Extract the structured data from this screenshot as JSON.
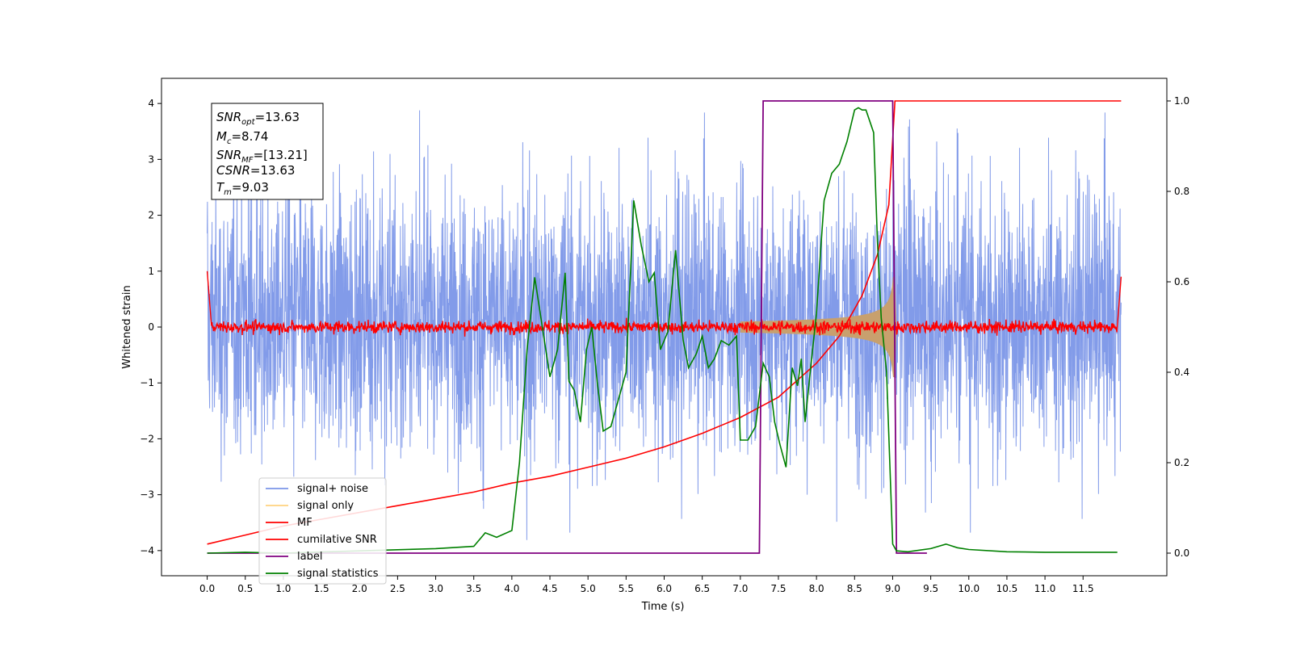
{
  "chart_data": {
    "type": "line",
    "xlabel": "Time (s)",
    "ylabel": "Whitened strain",
    "xlim": [
      -0.6,
      12.6
    ],
    "ylim": [
      -4.45,
      4.45
    ],
    "y2lim": [
      -0.05,
      1.05
    ],
    "x_ticks": [
      "0.0",
      "0.5",
      "1.0",
      "1.5",
      "2.0",
      "2.5",
      "3.0",
      "3.5",
      "4.0",
      "4.5",
      "5.0",
      "5.5",
      "6.0",
      "6.5",
      "7.0",
      "7.5",
      "8.0",
      "8.5",
      "9.0",
      "9.5",
      "10.0",
      "10.5",
      "11.0",
      "11.5"
    ],
    "x_tick_values": [
      0,
      0.5,
      1,
      1.5,
      2,
      2.5,
      3,
      3.5,
      4,
      4.5,
      5,
      5.5,
      6,
      6.5,
      7,
      7.5,
      8,
      8.5,
      9,
      9.5,
      10,
      10.5,
      11,
      11.5
    ],
    "y_ticks": [
      "−4",
      "−3",
      "−2",
      "−1",
      "0",
      "1",
      "2",
      "3",
      "4"
    ],
    "y_tick_values": [
      -4,
      -3,
      -2,
      -1,
      0,
      1,
      2,
      3,
      4
    ],
    "y2_ticks": [
      "0.0",
      "0.2",
      "0.4",
      "0.6",
      "0.8",
      "1.0"
    ],
    "y2_tick_values": [
      0,
      0.2,
      0.4,
      0.6,
      0.8,
      1.0
    ],
    "grid": false,
    "legend_position": "bottom-left",
    "annotations": {
      "snr_opt": {
        "name": "SNR",
        "sub": "opt",
        "value": "=13.63"
      },
      "mc": {
        "name": "M",
        "sub": "c",
        "value": "=8.74"
      },
      "snr_mf": {
        "name": "SNR",
        "sub": "MF",
        "value": "=[13.21]"
      },
      "csnr": {
        "name": "CSNR",
        "sub": "",
        "value": "=13.63"
      },
      "tm": {
        "name": "T",
        "sub": "m",
        "value": "=9.03"
      }
    },
    "series": [
      {
        "name": "signal+ noise",
        "color": "#7b96e8",
        "axis": "left",
        "t_start": 0,
        "t_end": 12,
        "envelope_sigma": 1.0,
        "peak": 3.95,
        "trough": -4.1
      },
      {
        "name": "signal only",
        "color": "#c8a06e",
        "axis": "left",
        "t_start": 7.0,
        "t_end": 9.03,
        "peak_amplitude": 0.9
      },
      {
        "name": "MF",
        "color": "#ff0000",
        "axis": "left",
        "t_start": 0,
        "t_end": 12,
        "noise_amplitude": 0.1,
        "edge_values": [
          1.0,
          0.9
        ]
      },
      {
        "name": "cumilative SNR",
        "color": "#ff0000",
        "axis": "right",
        "x": [
          0.0,
          0.5,
          1.0,
          1.5,
          2.0,
          2.5,
          3.0,
          3.5,
          4.0,
          4.5,
          5.0,
          5.5,
          6.0,
          6.5,
          7.0,
          7.5,
          8.0,
          8.3,
          8.6,
          8.8,
          8.95,
          9.03,
          12.0
        ],
        "y": [
          0.02,
          0.04,
          0.06,
          0.075,
          0.09,
          0.105,
          0.12,
          0.135,
          0.155,
          0.17,
          0.19,
          0.21,
          0.235,
          0.265,
          0.3,
          0.345,
          0.42,
          0.48,
          0.57,
          0.66,
          0.77,
          1.0,
          1.0
        ]
      },
      {
        "name": "label",
        "color": "#800080",
        "axis": "right",
        "x": [
          0,
          7.25,
          7.3,
          9.0,
          9.05,
          9.45
        ],
        "y": [
          0,
          0,
          1,
          1,
          0,
          0
        ]
      },
      {
        "name": "signal statistics",
        "color": "#008000",
        "axis": "right",
        "x": [
          0.0,
          0.5,
          1.0,
          2.0,
          3.0,
          3.5,
          3.65,
          3.8,
          4.0,
          4.1,
          4.2,
          4.3,
          4.4,
          4.5,
          4.6,
          4.7,
          4.75,
          4.82,
          4.9,
          4.98,
          5.05,
          5.12,
          5.2,
          5.3,
          5.4,
          5.5,
          5.6,
          5.7,
          5.8,
          5.87,
          5.95,
          6.05,
          6.15,
          6.25,
          6.32,
          6.42,
          6.5,
          6.58,
          6.66,
          6.75,
          6.85,
          6.95,
          7.0,
          7.1,
          7.2,
          7.3,
          7.38,
          7.45,
          7.52,
          7.6,
          7.68,
          7.75,
          7.8,
          7.85,
          7.93,
          8.0,
          8.05,
          8.1,
          8.2,
          8.3,
          8.4,
          8.5,
          8.55,
          8.6,
          8.65,
          8.75,
          8.8,
          8.85,
          8.92,
          9.0,
          9.05,
          9.2,
          9.5,
          9.7,
          9.85,
          10.0,
          10.5,
          11.0,
          11.5,
          11.95
        ],
        "y": [
          0.0,
          0.002,
          0.0,
          0.005,
          0.01,
          0.015,
          0.045,
          0.035,
          0.05,
          0.2,
          0.45,
          0.61,
          0.5,
          0.39,
          0.45,
          0.62,
          0.38,
          0.36,
          0.29,
          0.45,
          0.5,
          0.38,
          0.27,
          0.28,
          0.34,
          0.4,
          0.78,
          0.68,
          0.6,
          0.62,
          0.45,
          0.49,
          0.67,
          0.47,
          0.41,
          0.44,
          0.48,
          0.41,
          0.43,
          0.47,
          0.46,
          0.48,
          0.25,
          0.25,
          0.28,
          0.42,
          0.39,
          0.29,
          0.24,
          0.19,
          0.41,
          0.37,
          0.43,
          0.29,
          0.42,
          0.53,
          0.66,
          0.78,
          0.84,
          0.86,
          0.91,
          0.98,
          0.985,
          0.98,
          0.98,
          0.93,
          0.69,
          0.52,
          0.4,
          0.02,
          0.005,
          0.003,
          0.01,
          0.02,
          0.012,
          0.008,
          0.003,
          0.002,
          0.002,
          0.002
        ]
      }
    ]
  }
}
